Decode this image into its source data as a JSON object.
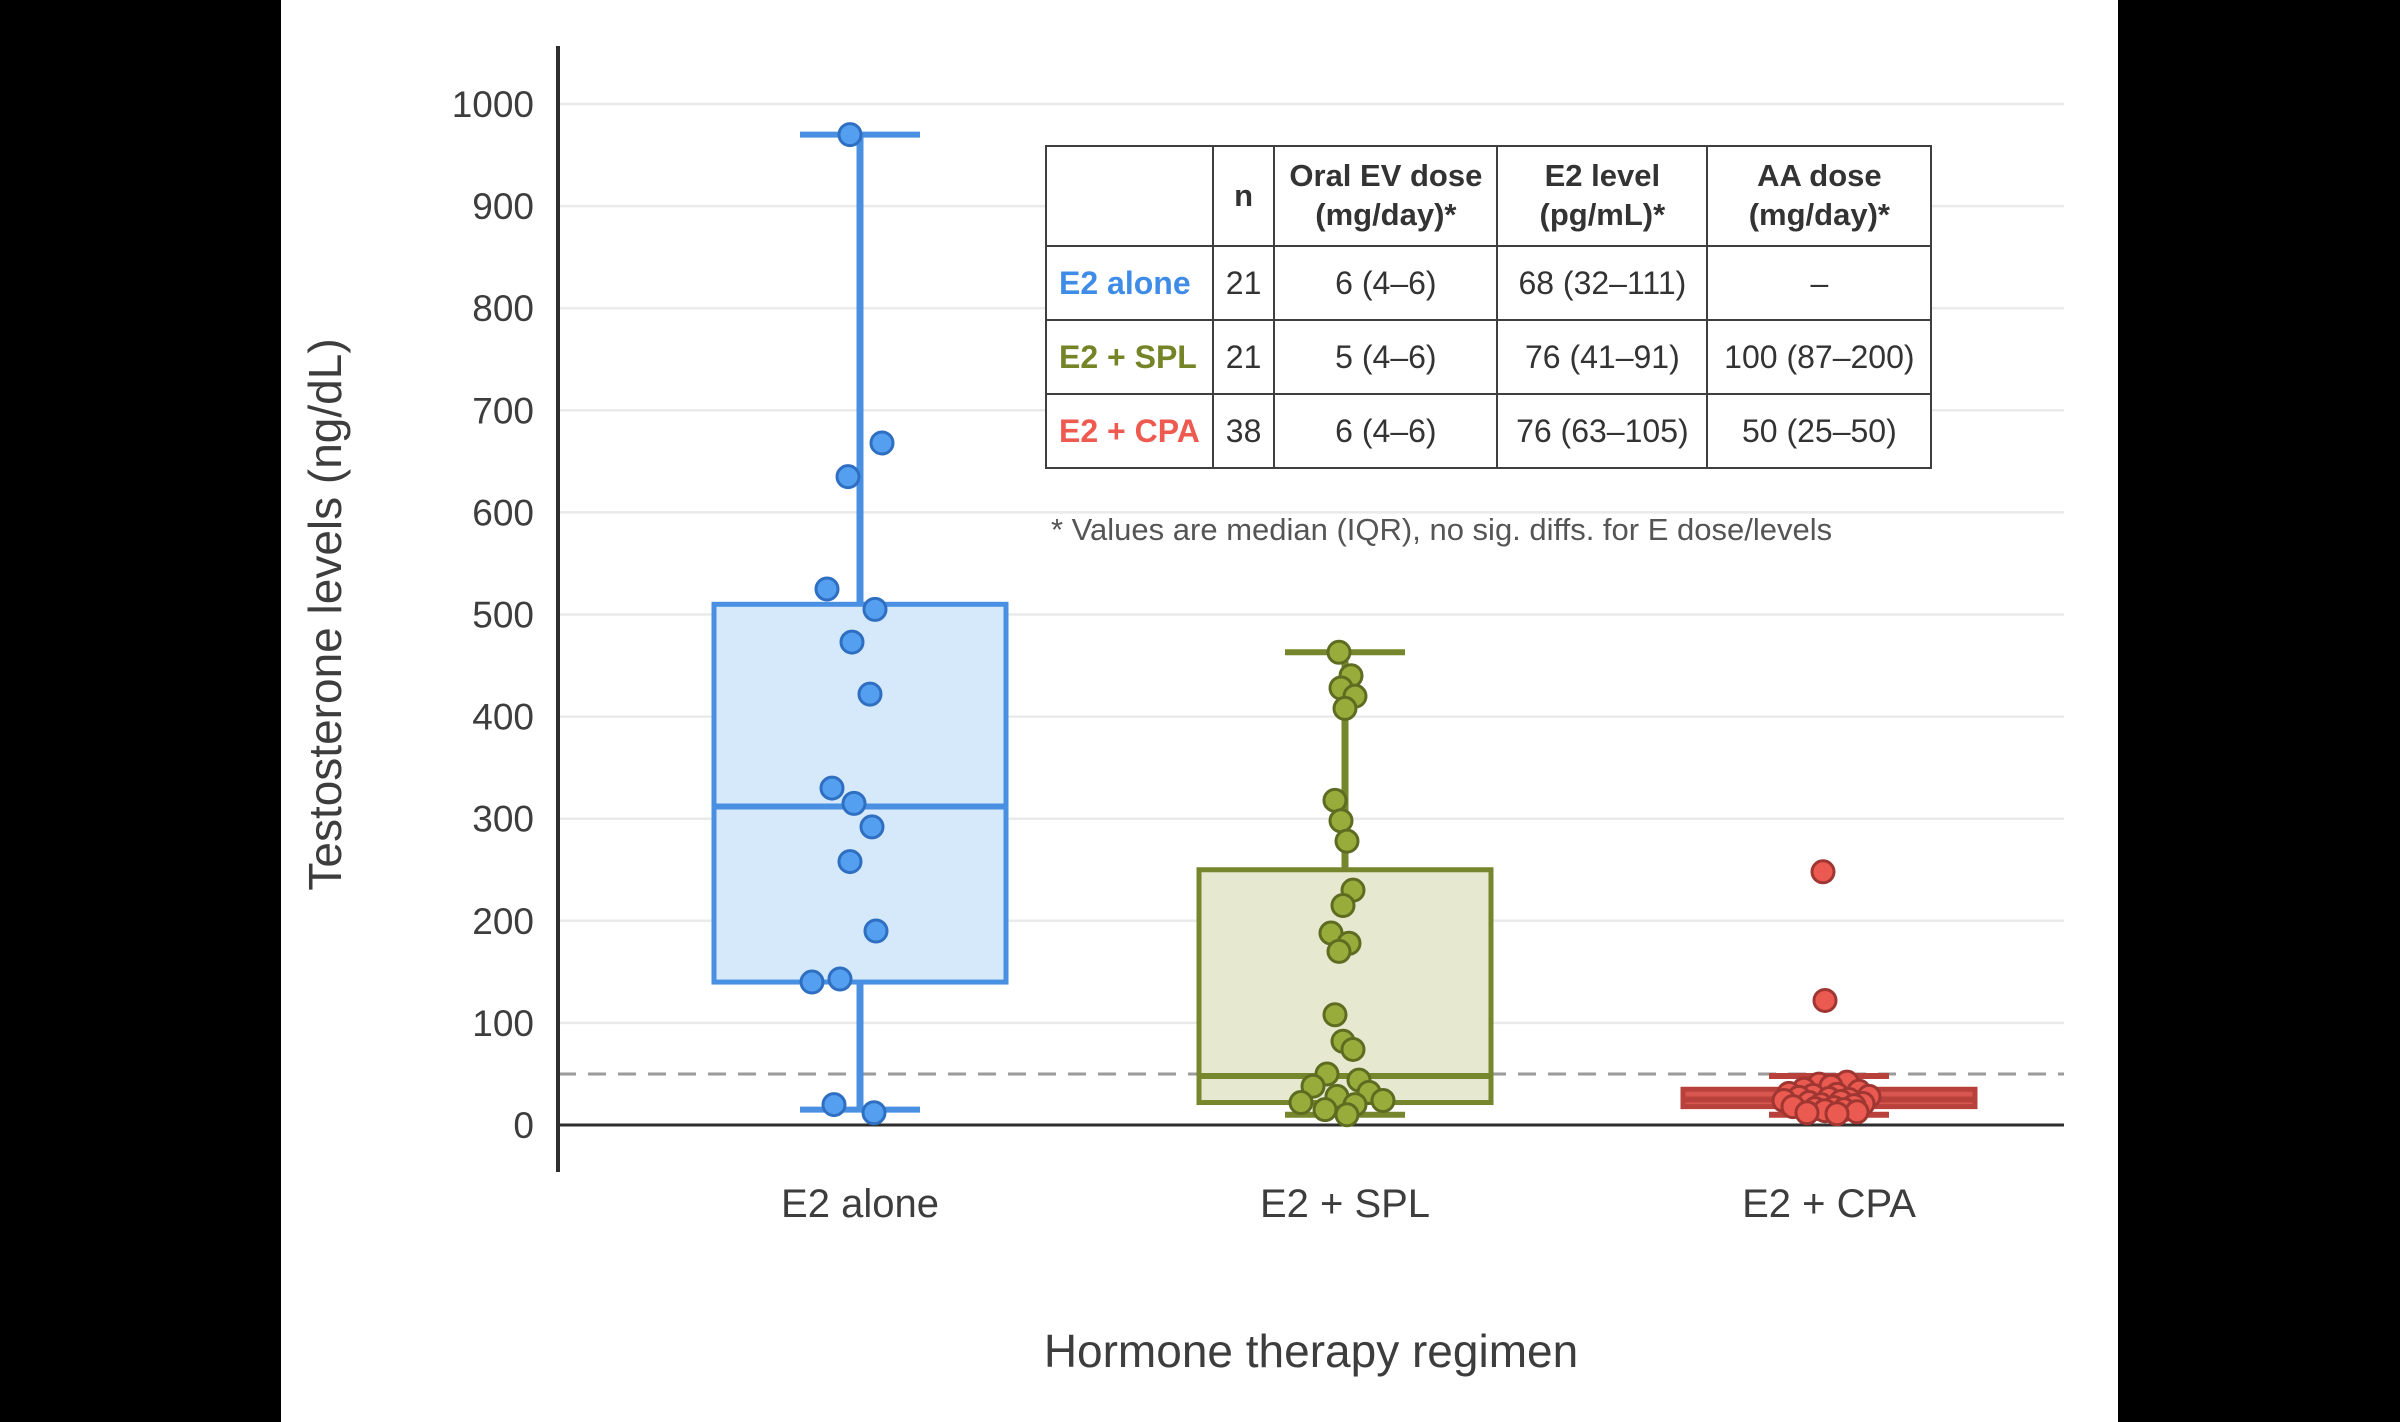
{
  "figure": {
    "background": "#000000",
    "canvas_background": "#ffffff"
  },
  "chart_data": {
    "type": "box",
    "title": "",
    "xlabel": "Hormone therapy regimen",
    "ylabel": "Testosterone levels (ng/dL)",
    "categories": [
      "E2 alone",
      "E2 + SPL",
      "E2 + CPA"
    ],
    "ylim": [
      0,
      1000
    ],
    "yticks": [
      0,
      100,
      200,
      300,
      400,
      500,
      600,
      700,
      800,
      900,
      1000
    ],
    "grid": true,
    "legend": "none",
    "reference_line": {
      "y": 50,
      "style": "dashed",
      "color": "#9b9b9b"
    },
    "groups": [
      {
        "name": "E2 alone",
        "stroke": "#4a90e2",
        "fill": "#d6e9fb",
        "point_fill": "#559ff0",
        "point_stroke": "#2f6fc2",
        "label_color": "#3f8ce8",
        "box": {
          "whisker_low": 15,
          "q1": 140,
          "median": 312,
          "q3": 510,
          "whisker_high": 970
        },
        "points": [
          [
            970,
            -10
          ],
          [
            668,
            22
          ],
          [
            635,
            -12
          ],
          [
            525,
            -33
          ],
          [
            505,
            15
          ],
          [
            473,
            -8
          ],
          [
            422,
            10
          ],
          [
            330,
            -28
          ],
          [
            315,
            -6
          ],
          [
            292,
            12
          ],
          [
            258,
            -10
          ],
          [
            190,
            16
          ],
          [
            143,
            -20
          ],
          [
            140,
            -48
          ],
          [
            20,
            -26
          ],
          [
            12,
            14
          ]
        ]
      },
      {
        "name": "E2 + SPL",
        "stroke": "#76862c",
        "fill": "#e6e9cf",
        "point_fill": "#98ac3c",
        "point_stroke": "#5e6c21",
        "label_color": "#748427",
        "box": {
          "whisker_low": 10,
          "q1": 22,
          "median": 48,
          "q3": 250,
          "whisker_high": 463
        },
        "points": [
          [
            463,
            -6
          ],
          [
            440,
            6
          ],
          [
            428,
            -4
          ],
          [
            420,
            10
          ],
          [
            408,
            0
          ],
          [
            318,
            -10
          ],
          [
            298,
            -4
          ],
          [
            278,
            2
          ],
          [
            230,
            8
          ],
          [
            215,
            -2
          ],
          [
            188,
            -14
          ],
          [
            178,
            4
          ],
          [
            170,
            -6
          ],
          [
            108,
            -10
          ],
          [
            82,
            -2
          ],
          [
            74,
            8
          ],
          [
            50,
            -18
          ],
          [
            44,
            14
          ],
          [
            38,
            -32
          ],
          [
            32,
            24
          ],
          [
            28,
            -8
          ],
          [
            24,
            38
          ],
          [
            22,
            -44
          ],
          [
            20,
            10
          ],
          [
            15,
            -20
          ],
          [
            10,
            2
          ]
        ]
      },
      {
        "name": "E2 + CPA",
        "stroke": "#b8413c",
        "fill": "#d8564f",
        "point_fill": "#ea5a50",
        "point_stroke": "#a03631",
        "label_color": "#ee5a50",
        "box": {
          "whisker_low": 10,
          "q1": 18,
          "median": 25,
          "q3": 35,
          "whisker_high": 48
        },
        "points": [
          [
            248,
            -6
          ],
          [
            122,
            -4
          ],
          [
            42,
            18
          ],
          [
            40,
            -10
          ],
          [
            38,
            2
          ],
          [
            35,
            -25
          ],
          [
            33,
            30
          ],
          [
            31,
            -40
          ],
          [
            30,
            8
          ],
          [
            29,
            -16
          ],
          [
            28,
            40
          ],
          [
            27,
            -30
          ],
          [
            26,
            0
          ],
          [
            25,
            20
          ],
          [
            24,
            -45
          ],
          [
            23,
            12
          ],
          [
            22,
            -20
          ],
          [
            21,
            34
          ],
          [
            20,
            -8
          ],
          [
            19,
            25
          ],
          [
            18,
            -36
          ],
          [
            17,
            5
          ],
          [
            16,
            -14
          ],
          [
            15,
            15
          ],
          [
            14,
            -4
          ],
          [
            13,
            28
          ],
          [
            12,
            -22
          ],
          [
            11,
            8
          ]
        ]
      }
    ]
  },
  "table": {
    "headers": [
      "",
      "n",
      "Oral EV dose\n(mg/day)*",
      "E2 level\n(pg/mL)*",
      "AA dose\n(mg/day)*"
    ],
    "rows": [
      {
        "label": "E2 alone",
        "n": "21",
        "ev_dose": "6 (4–6)",
        "e2_level": "68 (32–111)",
        "aa_dose": "–"
      },
      {
        "label": "E2 + SPL",
        "n": "21",
        "ev_dose": "5 (4–6)",
        "e2_level": "76 (41–91)",
        "aa_dose": "100 (87–200)"
      },
      {
        "label": "E2 + CPA",
        "n": "38",
        "ev_dose": "6 (4–6)",
        "e2_level": "76 (63–105)",
        "aa_dose": "50 (25–50)"
      }
    ],
    "footnote": "* Values are median (IQR), no sig. diffs. for E dose/levels"
  }
}
